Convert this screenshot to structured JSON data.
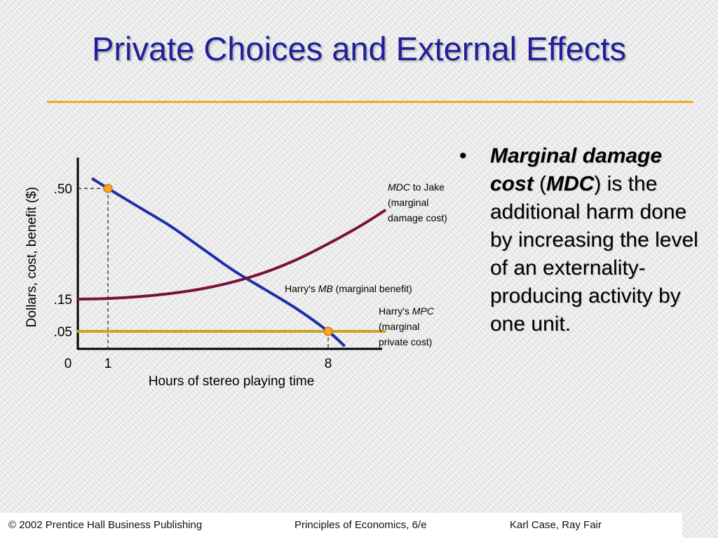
{
  "slide": {
    "title": "Private Choices and External Effects",
    "accent_color": "#f2aa1c",
    "title_color": "#1f1f9c"
  },
  "bullet": {
    "symbol": "•",
    "term": "Marginal damage cost",
    "open_paren": " (",
    "abbr": "MDC",
    "close_rest": ") is the additional harm done by increasing the level of an externality-producing activity by one unit."
  },
  "chart_data": {
    "type": "line",
    "xlabel": "Hours of stereo playing time",
    "ylabel": "Dollars, cost, benefit ($)",
    "x_ticks": [
      "0",
      "1",
      "8"
    ],
    "y_ticks": [
      ".50",
      ".15",
      ".05"
    ],
    "series": [
      {
        "name": "Harry's MB (marginal benefit)",
        "label_italic": "MB",
        "label_prefix": "Harry's ",
        "label_suffix": " (marginal benefit)",
        "color": "#1c2fa6",
        "x": [
          0.5,
          1,
          2,
          3,
          4,
          5,
          6,
          7,
          8,
          8.5
        ],
        "y": [
          0.53,
          0.5,
          0.44,
          0.38,
          0.31,
          0.24,
          0.18,
          0.12,
          0.05,
          0.01
        ]
      },
      {
        "name": "MDC to Jake (marginal damage cost)",
        "label_italic": "MDC",
        "label_line1_suffix": " to Jake",
        "label_line2": "(marginal",
        "label_line3": "damage cost)",
        "color": "#7a1040",
        "x": [
          0,
          1,
          2,
          3,
          4,
          5,
          6,
          7,
          8,
          9,
          9.8
        ],
        "y": [
          0.15,
          0.152,
          0.158,
          0.168,
          0.183,
          0.205,
          0.235,
          0.275,
          0.325,
          0.38,
          0.43
        ]
      },
      {
        "name": "Harry's MPC (marginal private cost)",
        "label_prefix": "Harry's ",
        "label_italic": "MPC",
        "label_line2": "(marginal",
        "label_line3": "private cost)",
        "color": "#c9a227",
        "x": [
          0,
          9.8
        ],
        "y": [
          0.05,
          0.05
        ]
      }
    ],
    "points": [
      {
        "x": 1,
        "y": 0.5,
        "color": "#f5a623"
      },
      {
        "x": 8,
        "y": 0.05,
        "color": "#f5a623"
      }
    ],
    "grid": false
  },
  "footer": {
    "left": "© 2002 Prentice Hall Business Publishing",
    "center": "Principles of Economics, 6/e",
    "right": "Karl Case, Ray Fair"
  }
}
